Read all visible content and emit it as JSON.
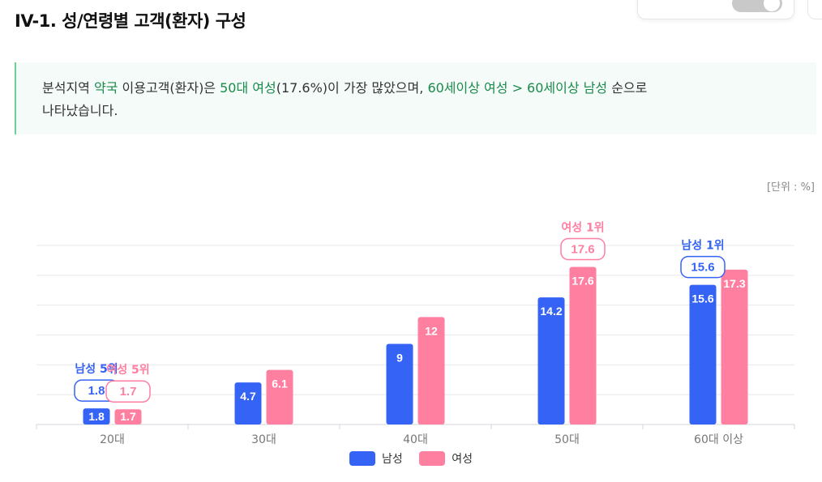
{
  "title": "IV-1. 성/연령별 고객(환자) 구성",
  "summary": {
    "part1": "분석지역 ",
    "hl1": "약국",
    "part2": " 이용고객(환자)은 ",
    "hl2": "50대 여성",
    "part3": "(17.6%)이 가장 많았으며, ",
    "hl3": "60세이상 여성 > 60세이상 남성",
    "part4": " 순으로",
    "line2": "나타났습니다."
  },
  "unit_label": "[단위 : %]",
  "colors": {
    "male": "#3563f5",
    "female": "#ff7fa1",
    "grid": "#e8e8ee"
  },
  "chart_data": {
    "type": "bar",
    "categories": [
      "20대",
      "30대",
      "40대",
      "50대",
      "60대 이상"
    ],
    "series": [
      {
        "name": "남성",
        "values": [
          1.8,
          4.7,
          9,
          14.2,
          15.6
        ],
        "labels": [
          "1.8",
          "4.7",
          "9",
          "14.2",
          "15.6"
        ]
      },
      {
        "name": "여성",
        "values": [
          1.7,
          6.1,
          12,
          17.6,
          17.3
        ],
        "labels": [
          "1.7",
          "6.1",
          "12",
          "17.6",
          "17.3"
        ]
      }
    ],
    "ylim": [
      0,
      20
    ],
    "grid": true,
    "legend": "bottom",
    "annotations": [
      {
        "series": 0,
        "category": 0,
        "text": "남성 5위",
        "value": "1.8"
      },
      {
        "series": 1,
        "category": 0,
        "text": "여성 5위",
        "value": "1.7"
      },
      {
        "series": 1,
        "category": 3,
        "text": "여성 1위",
        "value": "17.6"
      },
      {
        "series": 0,
        "category": 4,
        "text": "남성 1위",
        "value": "15.6"
      }
    ]
  },
  "legend_items": [
    "남성",
    "여성"
  ]
}
